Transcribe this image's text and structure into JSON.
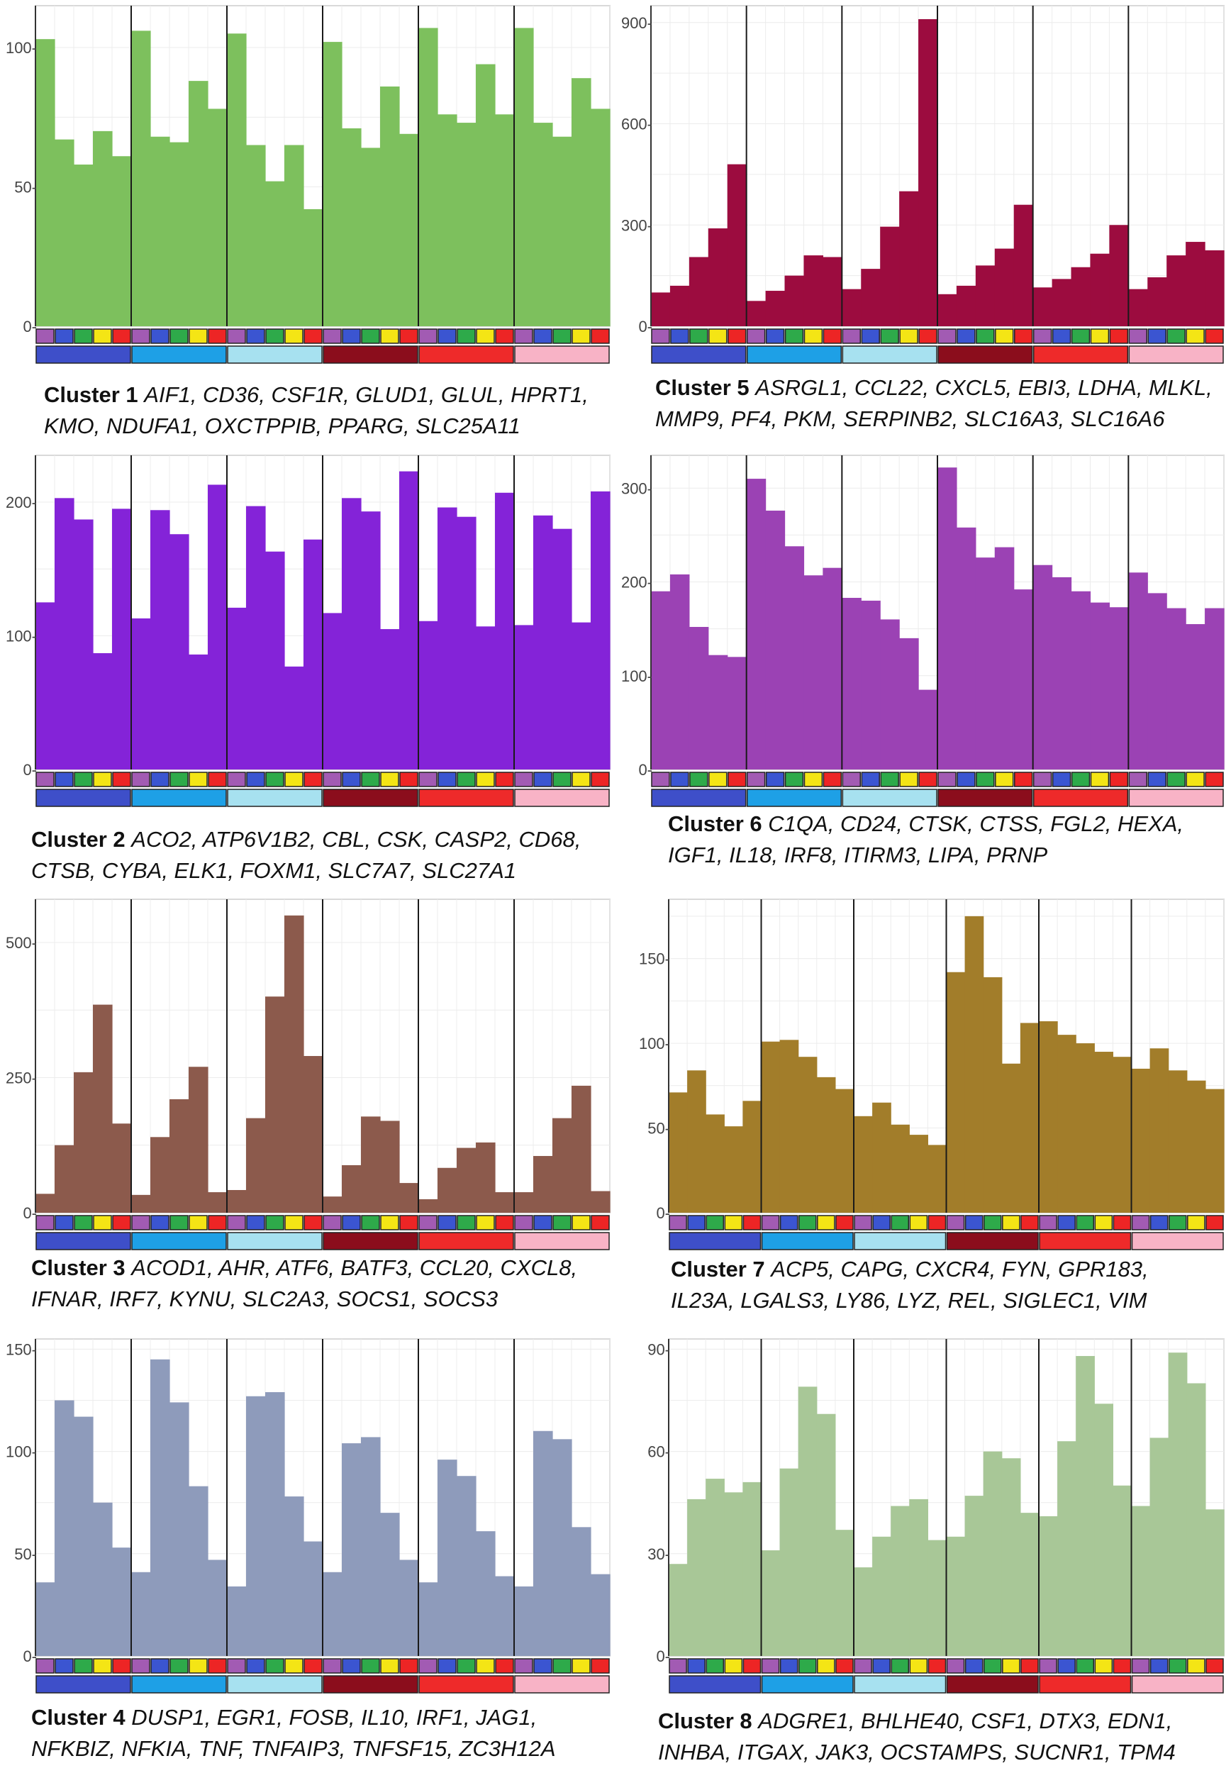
{
  "legend": {
    "strip_colors": [
      "#a25bb3",
      "#3b55d1",
      "#2eaa4a",
      "#f4e515",
      "#ed2525"
    ],
    "group_colors": [
      "#3e4fc9",
      "#1ea0e6",
      "#a7e1f0",
      "#8b0d1c",
      "#ee2a2a",
      "#f8b3c6"
    ]
  },
  "chart_data": [
    {
      "type": "bar",
      "title": "Cluster 1",
      "genes": "AIF1, CD36, CSF1R, GLUD1, GLUL, HPRT1,",
      "genes2": "KMO, NDUFA1, OXCTPPIB, PPARG, SLC25A11",
      "color": "#7dc05d",
      "ylim": [
        0,
        115
      ],
      "yticks": [
        0,
        50,
        100
      ],
      "ytick_labels": [
        "0-",
        "50-",
        "100-"
      ],
      "groups": 6,
      "values": [
        103,
        67,
        58,
        70,
        61,
        106,
        68,
        66,
        88,
        78,
        105,
        65,
        52,
        65,
        42,
        102,
        71,
        64,
        86,
        69,
        107,
        76,
        73,
        94,
        76,
        107,
        73,
        68,
        89,
        78
      ]
    },
    {
      "type": "bar",
      "title": "Cluster 5",
      "genes": "ASRGL1, CCL22, CXCL5, EBI3, LDHA, MLKL,",
      "genes2": "MMP9, PF4, PKM, SERPINB2, SLC16A3, SLC16A6",
      "color": "#9c0c3f",
      "ylim": [
        0,
        950
      ],
      "yticks": [
        0,
        300,
        600,
        900
      ],
      "ytick_labels": [
        "0-",
        "300-",
        "600-",
        "900-"
      ],
      "groups": 6,
      "values": [
        100,
        120,
        205,
        290,
        480,
        75,
        105,
        150,
        210,
        205,
        110,
        170,
        295,
        400,
        910,
        95,
        120,
        180,
        230,
        360,
        115,
        140,
        175,
        215,
        300,
        110,
        145,
        210,
        250,
        225
      ]
    },
    {
      "type": "bar",
      "title": "Cluster 2",
      "genes": "ACO2, ATP6V1B2, CBL, CSK, CASP2, CD68,",
      "genes2": "CTSB, CYBA, ELK1, FOXM1, SLC7A7, SLC27A1",
      "color": "#8423d8",
      "ylim": [
        0,
        235
      ],
      "yticks": [
        0,
        100,
        200
      ],
      "ytick_labels": [
        "0-",
        "100-",
        "200-"
      ],
      "groups": 6,
      "values": [
        125,
        203,
        187,
        87,
        195,
        113,
        194,
        176,
        86,
        213,
        121,
        197,
        163,
        77,
        172,
        117,
        203,
        193,
        105,
        223,
        111,
        196,
        189,
        107,
        207,
        108,
        190,
        180,
        110,
        208
      ]
    },
    {
      "type": "bar",
      "title": "Cluster 6",
      "genes": "C1QA, CD24, CTSK, CTSS, FGL2, HEXA,",
      "genes2": "IGF1, IL18, IRF8, ITIRM3, LIPA, PRNP",
      "color": "#9b42b4",
      "ylim": [
        0,
        335
      ],
      "yticks": [
        0,
        100,
        200,
        300
      ],
      "ytick_labels": [
        "0-",
        "100-",
        "200-",
        "300-"
      ],
      "groups": 6,
      "values": [
        190,
        208,
        152,
        122,
        120,
        310,
        276,
        238,
        207,
        215,
        183,
        180,
        160,
        140,
        85,
        322,
        258,
        226,
        237,
        192,
        218,
        205,
        190,
        178,
        173,
        210,
        188,
        172,
        155,
        172
      ]
    },
    {
      "type": "bar",
      "title": "Cluster 3",
      "genes": "ACOD1, AHR, ATF6, BATF3, CCL20, CXCL8,",
      "genes2": "IFNAR, IRF7, KYNU, SLC2A3, SOCS1, SOCS3",
      "color": "#8c5a4c",
      "ylim": [
        0,
        580
      ],
      "yticks": [
        0,
        250,
        500
      ],
      "ytick_labels": [
        "0-",
        "250-",
        "500-"
      ],
      "groups": 6,
      "values": [
        35,
        125,
        260,
        385,
        165,
        33,
        140,
        210,
        270,
        38,
        42,
        175,
        400,
        550,
        290,
        30,
        88,
        178,
        170,
        55,
        25,
        83,
        120,
        130,
        38,
        38,
        105,
        175,
        235,
        40
      ]
    },
    {
      "type": "bar",
      "title": "Cluster 7",
      "genes": "ACP5, CAPG, CXCR4, FYN, GPR183,",
      "genes2": "IL23A, LGALS3, LY86, LYZ, REL, SIGLEC1, VIM",
      "color": "#a27d2a",
      "ylim": [
        0,
        185
      ],
      "yticks": [
        0,
        50,
        100,
        150
      ],
      "ytick_labels": [
        "0-",
        "50-",
        "100-",
        "150-"
      ],
      "groups": 6,
      "values": [
        71,
        84,
        58,
        51,
        66,
        101,
        102,
        92,
        80,
        73,
        57,
        65,
        52,
        46,
        40,
        142,
        175,
        139,
        88,
        112,
        113,
        105,
        100,
        95,
        92,
        85,
        97,
        84,
        78,
        73
      ]
    },
    {
      "type": "bar",
      "title": "Cluster 4",
      "genes": "DUSP1, EGR1, FOSB, IL10, IRF1, JAG1,",
      "genes2": "NFKBIZ, NFKIA, TNF, TNFAIP3, TNFSF15, ZC3H12A",
      "color": "#8e9bbb",
      "ylim": [
        0,
        155
      ],
      "yticks": [
        0,
        50,
        100,
        150
      ],
      "ytick_labels": [
        "0-",
        "50-",
        "100-",
        "150-"
      ],
      "groups": 6,
      "values": [
        36,
        125,
        117,
        75,
        53,
        41,
        145,
        124,
        83,
        47,
        34,
        127,
        129,
        78,
        56,
        41,
        104,
        107,
        70,
        47,
        36,
        96,
        88,
        61,
        39,
        34,
        110,
        106,
        63,
        40
      ]
    },
    {
      "type": "bar",
      "title": "Cluster 8",
      "genes": "ADGRE1, BHLHE40, CSF1, DTX3, EDN1,",
      "genes2": "INHBA, ITGAX, JAK3, OCSTAMPS, SUCNR1, TPM4",
      "color": "#a8c797",
      "ylim": [
        0,
        93
      ],
      "yticks": [
        0,
        30,
        60,
        90
      ],
      "ytick_labels": [
        "0-",
        "30-",
        "60-",
        "90-"
      ],
      "groups": 6,
      "values": [
        27,
        46,
        52,
        48,
        51,
        31,
        55,
        79,
        71,
        37,
        26,
        35,
        44,
        46,
        34,
        35,
        47,
        60,
        58,
        42,
        41,
        63,
        88,
        74,
        50,
        44,
        64,
        89,
        80,
        43
      ]
    }
  ]
}
